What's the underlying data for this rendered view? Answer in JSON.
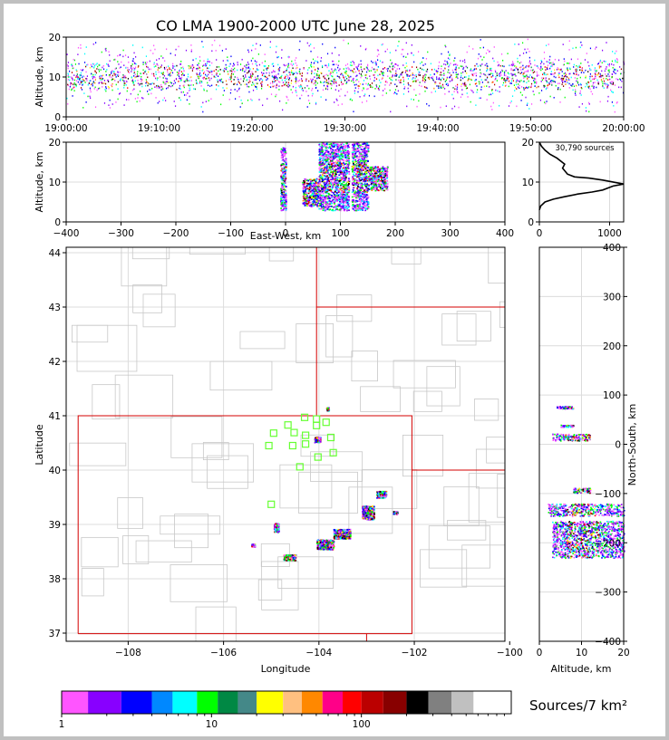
{
  "title": "CO LMA 1900-2000 UTC June 28, 2025",
  "colors": {
    "axis": "#000000",
    "grid": "#dcdcdc",
    "county_border": "#c8c8c8",
    "state_border": "#d40000",
    "station": "#66ff33"
  },
  "chart_data": [
    {
      "type": "scatter",
      "name": "altitude-time",
      "ylabel": "Altitude, km",
      "xlabel": "",
      "xlim": [
        "19:00:00",
        "20:00:00"
      ],
      "ylim": [
        0,
        20
      ],
      "x_ticks": [
        "19:00:00",
        "19:10:00",
        "19:20:00",
        "19:30:00",
        "19:40:00",
        "19:50:00",
        "20:00:00"
      ],
      "y_ticks": [
        0,
        10,
        20
      ],
      "note_sources_band_km": [
        5,
        17
      ]
    },
    {
      "type": "scatter",
      "name": "altitude-eastwest",
      "xlabel": "East-West, km",
      "ylabel": "Altitude, km",
      "xlim": [
        -400,
        400
      ],
      "ylim": [
        0,
        20
      ],
      "x_ticks": [
        -400,
        -300,
        -200,
        -100,
        0,
        100,
        200,
        300,
        400
      ],
      "y_ticks": [
        0,
        10,
        20
      ],
      "clusters": [
        {
          "x": [
            -10,
            0
          ],
          "y": [
            3,
            19
          ]
        },
        {
          "x": [
            30,
            60
          ],
          "y": [
            4,
            11
          ]
        },
        {
          "x": [
            60,
            90
          ],
          "y": [
            3,
            20
          ]
        },
        {
          "x": [
            90,
            115
          ],
          "y": [
            3,
            20
          ]
        },
        {
          "x": [
            120,
            150
          ],
          "y": [
            3,
            20
          ]
        },
        {
          "x": [
            150,
            185
          ],
          "y": [
            8,
            14
          ]
        }
      ]
    },
    {
      "type": "line",
      "name": "altitude-histogram",
      "annotation": "30,790 sources",
      "xlim": [
        0,
        1200
      ],
      "ylim": [
        0,
        20
      ],
      "x_ticks": [
        0,
        1000
      ],
      "y_ticks": [
        0,
        10,
        20
      ],
      "x": [
        0,
        20,
        80,
        200,
        350,
        550,
        750,
        900,
        1050,
        1200,
        900,
        700,
        500,
        400,
        330,
        360,
        250,
        150,
        80,
        30,
        0
      ],
      "y": [
        3,
        4,
        5,
        5.7,
        6.3,
        7,
        7.5,
        8,
        9,
        9.5,
        10.5,
        11,
        11.3,
        12,
        13.5,
        14.5,
        16,
        17,
        18,
        19,
        20
      ]
    },
    {
      "type": "scatter",
      "name": "plan-view-map",
      "xlabel": "Longitude",
      "ylabel": "Latitude",
      "xlim": [
        -109.3,
        -100.1
      ],
      "ylim": [
        36.85,
        44.1
      ],
      "x_ticks": [
        -108,
        -106,
        -104,
        -102,
        -100
      ],
      "y_ticks": [
        37,
        38,
        39,
        40,
        41,
        42,
        43,
        44
      ],
      "stations": [
        {
          "lon": -104.3,
          "lat": 40.97
        },
        {
          "lon": -104.05,
          "lat": 40.94
        },
        {
          "lon": -103.85,
          "lat": 40.88
        },
        {
          "lon": -104.65,
          "lat": 40.83
        },
        {
          "lon": -104.05,
          "lat": 40.82
        },
        {
          "lon": -104.95,
          "lat": 40.68
        },
        {
          "lon": -104.52,
          "lat": 40.69
        },
        {
          "lon": -104.28,
          "lat": 40.64
        },
        {
          "lon": -103.75,
          "lat": 40.6
        },
        {
          "lon": -105.05,
          "lat": 40.45
        },
        {
          "lon": -104.55,
          "lat": 40.45
        },
        {
          "lon": -104.28,
          "lat": 40.48
        },
        {
          "lon": -103.7,
          "lat": 40.32
        },
        {
          "lon": -104.02,
          "lat": 40.24
        },
        {
          "lon": -104.4,
          "lat": 40.06
        },
        {
          "lon": -105.0,
          "lat": 39.37
        }
      ],
      "clusters": [
        {
          "lon": [
            -104.1,
            -103.98
          ],
          "lat": [
            40.52,
            40.62
          ]
        },
        {
          "lon": [
            -103.85,
            -103.8
          ],
          "lat": [
            41.1,
            41.16
          ]
        },
        {
          "lon": [
            -103.1,
            -102.85
          ],
          "lat": [
            39.1,
            39.35
          ]
        },
        {
          "lon": [
            -102.8,
            -102.6
          ],
          "lat": [
            39.5,
            39.62
          ]
        },
        {
          "lon": [
            -103.7,
            -103.35
          ],
          "lat": [
            38.75,
            38.92
          ]
        },
        {
          "lon": [
            -104.05,
            -103.7
          ],
          "lat": [
            38.55,
            38.73
          ]
        },
        {
          "lon": [
            -104.75,
            -104.5
          ],
          "lat": [
            38.35,
            38.45
          ]
        },
        {
          "lon": [
            -104.95,
            -104.85
          ],
          "lat": [
            38.87,
            39.03
          ]
        },
        {
          "lon": [
            -105.42,
            -105.35
          ],
          "lat": [
            38.6,
            38.65
          ]
        },
        {
          "lon": [
            -102.45,
            -102.35
          ],
          "lat": [
            39.2,
            39.25
          ]
        }
      ]
    },
    {
      "type": "scatter",
      "name": "northsouth-altitude",
      "xlabel": "Altitude, km",
      "ylabel": "North-South, km",
      "xlim": [
        0,
        20
      ],
      "ylim": [
        -400,
        400
      ],
      "x_ticks": [
        0,
        10,
        20
      ],
      "y_ticks": [
        -400,
        -300,
        -200,
        -100,
        0,
        100,
        200,
        300,
        400
      ],
      "clusters": [
        {
          "x": [
            4,
            8
          ],
          "y": [
            73,
            78
          ]
        },
        {
          "x": [
            5,
            8
          ],
          "y": [
            36,
            40
          ]
        },
        {
          "x": [
            3,
            12
          ],
          "y": [
            8,
            22
          ]
        },
        {
          "x": [
            8,
            12
          ],
          "y": [
            -88,
            -98
          ]
        },
        {
          "x": [
            2,
            20
          ],
          "y": [
            -120,
            -145
          ]
        },
        {
          "x": [
            3,
            20
          ],
          "y": [
            -155,
            -230
          ]
        }
      ]
    },
    {
      "type": "colorbar",
      "name": "source-density-colorbar",
      "label": "Sources/7 km²",
      "scale": "log",
      "range": [
        1,
        1000
      ],
      "ticks": [
        "1",
        "10",
        "100"
      ],
      "colors": [
        "#ff55ff",
        "#8800ff",
        "#0000ff",
        "#0088ff",
        "#00ffff",
        "#00ff00",
        "#008844",
        "#448888",
        "#ffff00",
        "#ffc080",
        "#ff8800",
        "#ff0088",
        "#ff0000",
        "#bb0000",
        "#880000",
        "#000000",
        "#808080",
        "#c0c0c0",
        "#ffffff"
      ]
    }
  ]
}
